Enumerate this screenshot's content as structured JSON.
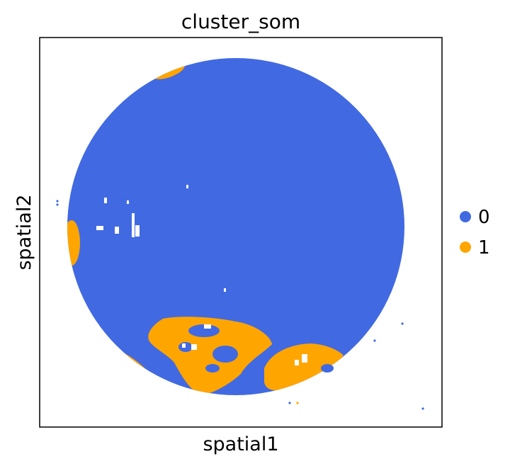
{
  "chart_data": {
    "type": "scatter",
    "title": "cluster_som",
    "xlabel": "spatial1",
    "ylabel": "spatial2",
    "grid": false,
    "axis_ticks": false,
    "legend_position": "right",
    "series": [
      {
        "name": "0",
        "color": "#4169e1",
        "description": "main circular spot region"
      },
      {
        "name": "1",
        "color": "#ffa500",
        "description": "edge and lower regions"
      }
    ]
  }
}
